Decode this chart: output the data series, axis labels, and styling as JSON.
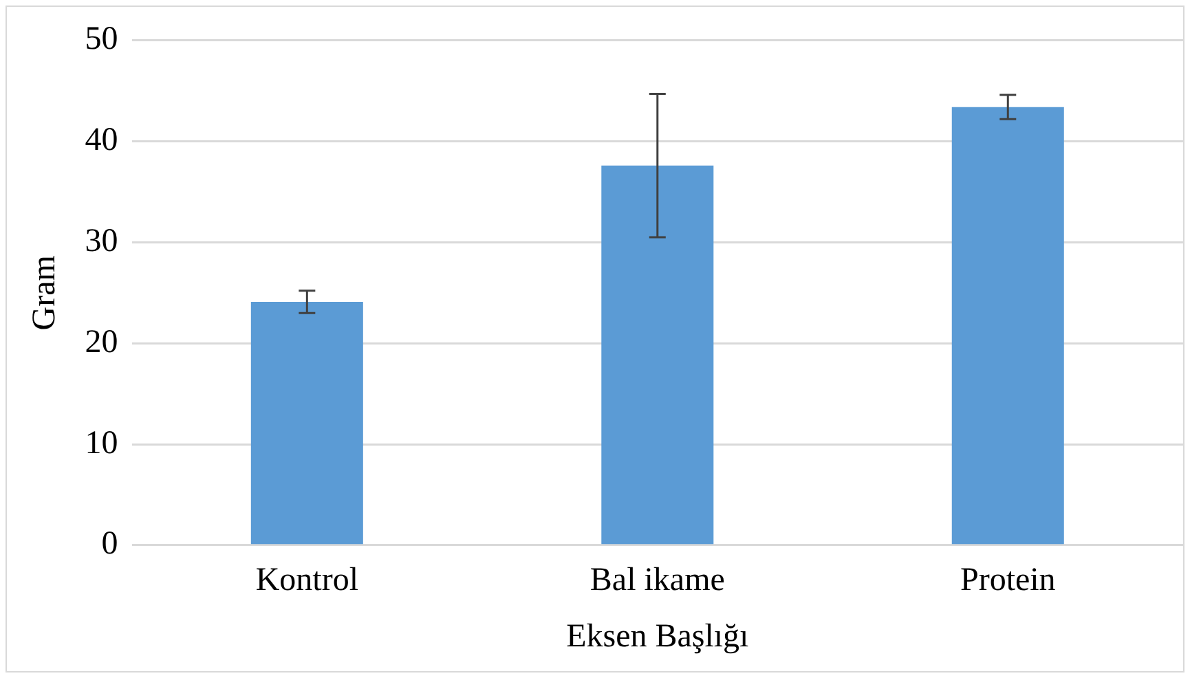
{
  "chart_data": {
    "type": "bar",
    "xlabel": "Eksen Başlığı",
    "ylabel": "Gram",
    "categories": [
      "Kontrol",
      "Bal ikame",
      "Protein"
    ],
    "values": [
      24.1,
      37.6,
      43.4
    ],
    "color": "#5b9bd5",
    "errors": [
      1.1,
      7.1,
      1.2
    ],
    "ylim": [
      0,
      50
    ],
    "yticks": [
      0,
      10,
      20,
      30,
      40,
      50
    ],
    "grid": "y",
    "legend": false
  }
}
